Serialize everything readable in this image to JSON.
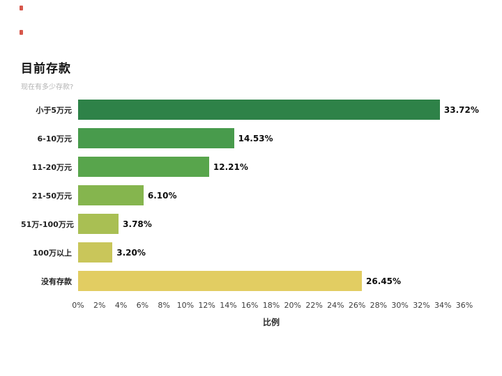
{
  "artifact_color": "#d0392b",
  "chart_data": {
    "type": "bar",
    "orientation": "horizontal",
    "title": "目前存款",
    "subtitle": "现在有多少存款?",
    "xlabel": "比例",
    "xlim": [
      0,
      36
    ],
    "tick_step": 2,
    "grid": false,
    "legend": false,
    "x_ticks": [
      "0%",
      "2%",
      "4%",
      "6%",
      "8%",
      "10%",
      "12%",
      "14%",
      "16%",
      "18%",
      "20%",
      "22%",
      "24%",
      "26%",
      "28%",
      "30%",
      "32%",
      "34%",
      "36%"
    ],
    "categories": [
      "小于5万元",
      "6-10万元",
      "11-20万元",
      "21-50万元",
      "51万-100万元",
      "100万以上",
      "没有存款"
    ],
    "values": [
      33.72,
      14.53,
      12.21,
      6.1,
      3.78,
      3.2,
      26.45
    ],
    "value_labels": [
      "33.72%",
      "14.53%",
      "12.21%",
      "6.10%",
      "3.78%",
      "3.20%",
      "26.45%"
    ],
    "colors": [
      "#2e8248",
      "#489b4c",
      "#58a54c",
      "#85b54e",
      "#a9bf53",
      "#c9c65a",
      "#e2cd62"
    ]
  }
}
